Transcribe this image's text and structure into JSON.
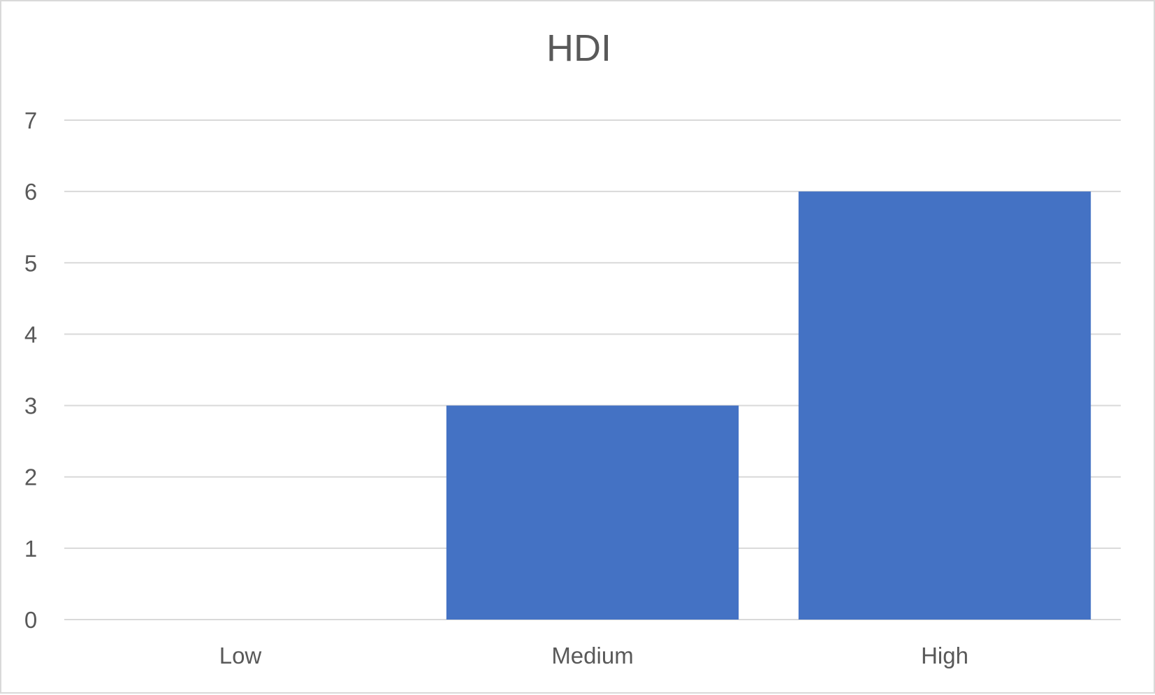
{
  "chart_data": {
    "type": "bar",
    "title": "HDI",
    "categories": [
      "Low",
      "Medium",
      "High"
    ],
    "values": [
      0,
      3,
      6
    ],
    "xlabel": "",
    "ylabel": "",
    "ylim": [
      0,
      7
    ],
    "yticks": [
      "0",
      "1",
      "2",
      "3",
      "4",
      "5",
      "6",
      "7"
    ],
    "grid": true,
    "legend": "none",
    "bar_color": "#4472c4",
    "grid_color": "#d9d9d9",
    "text_color": "#595959"
  }
}
